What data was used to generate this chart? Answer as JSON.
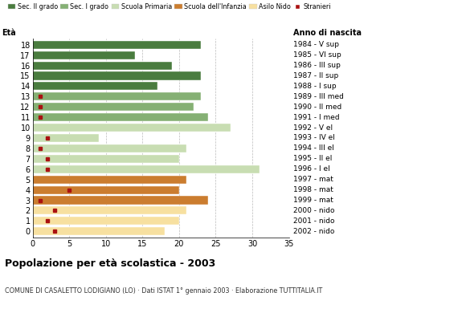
{
  "ages": [
    18,
    17,
    16,
    15,
    14,
    13,
    12,
    11,
    10,
    9,
    8,
    7,
    6,
    5,
    4,
    3,
    2,
    1,
    0
  ],
  "bar_values": [
    23,
    14,
    19,
    23,
    17,
    23,
    22,
    24,
    27,
    9,
    21,
    20,
    31,
    21,
    20,
    24,
    21,
    20,
    18
  ],
  "bar_colors": [
    "#4a7c3f",
    "#4a7c3f",
    "#4a7c3f",
    "#4a7c3f",
    "#4a7c3f",
    "#85b074",
    "#85b074",
    "#85b074",
    "#c8ddb2",
    "#c8ddb2",
    "#c8ddb2",
    "#c8ddb2",
    "#c8ddb2",
    "#cb7d2f",
    "#cb7d2f",
    "#cb7d2f",
    "#f7e0a0",
    "#f7e0a0",
    "#f7e0a0"
  ],
  "stranieri_values": [
    0,
    0,
    0,
    0,
    0,
    1,
    1,
    1,
    0,
    2,
    1,
    2,
    2,
    0,
    5,
    1,
    3,
    2,
    3
  ],
  "right_labels": [
    "1984 - V sup",
    "1985 - VI sup",
    "1986 - III sup",
    "1987 - II sup",
    "1988 - I sup",
    "1989 - III med",
    "1990 - II med",
    "1991 - I med",
    "1992 - V el",
    "1993 - IV el",
    "1994 - III el",
    "1995 - II el",
    "1996 - I el",
    "1997 - mat",
    "1998 - mat",
    "1999 - mat",
    "2000 - nido",
    "2001 - nido",
    "2002 - nido"
  ],
  "legend_labels": [
    "Sec. II grado",
    "Sec. I grado",
    "Scuola Primaria",
    "Scuola dell'Infanzia",
    "Asilo Nido",
    "Stranieri"
  ],
  "legend_colors": [
    "#4a7c3f",
    "#85b074",
    "#c8ddb2",
    "#cb7d2f",
    "#f7e0a0",
    "#aa1111"
  ],
  "title": "Popolazione per età scolastica - 2003",
  "subtitle": "COMUNE DI CASALETTO LODIGIANO (LO) · Dati ISTAT 1° gennaio 2003 · Elaborazione TUTTITALIA.IT",
  "xlabel_left": "Età",
  "xlabel_right": "Anno di nascita",
  "xlim": [
    0,
    35
  ],
  "xticks": [
    0,
    5,
    10,
    15,
    20,
    25,
    30,
    35
  ],
  "stranieri_color": "#aa1111",
  "bar_height": 0.78
}
